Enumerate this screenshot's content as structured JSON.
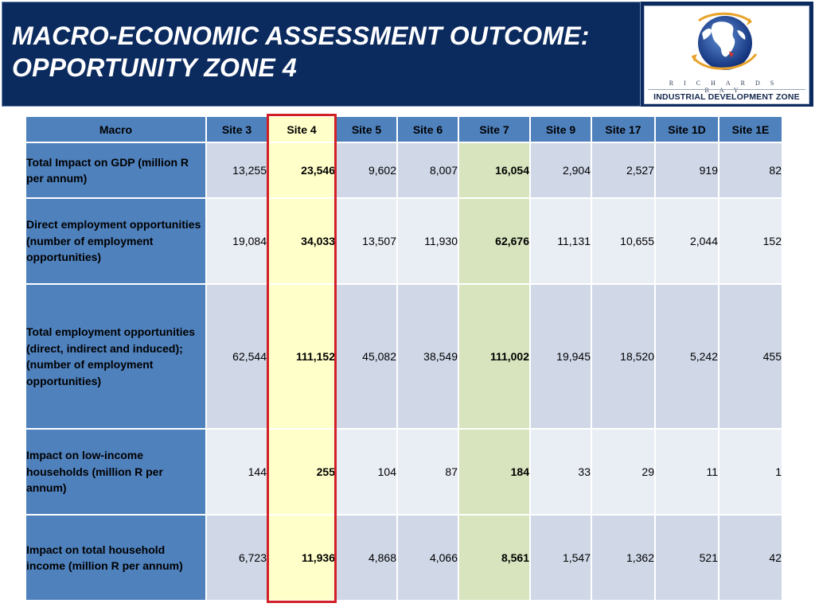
{
  "slide": {
    "title_line1": "MACRO-ECONOMIC ASSESSMENT OUTCOME:",
    "title_line2": "OPPORTUNITY ZONE 4",
    "logo": {
      "line1": "RICHARDS BAY",
      "line2": "INDUSTRIAL DEVELOPMENT ZONE"
    }
  },
  "table": {
    "headers": [
      "Macro",
      "Site 3",
      "Site 4",
      "Site 5",
      "Site 6",
      "Site 7",
      "Site 9",
      "Site 17",
      "Site 1D",
      "Site 1E"
    ],
    "rows": [
      {
        "label": "Total Impact on GDP (million R per annum)",
        "values": [
          "13,255",
          "23,546",
          "9,602",
          "8,007",
          "16,054",
          "2,904",
          "2,527",
          "919",
          "82"
        ]
      },
      {
        "label": "Direct employment opportunities (number of employment opportunities)",
        "values": [
          "19,084",
          "34,033",
          "13,507",
          "11,930",
          "62,676",
          "11,131",
          "10,655",
          "2,044",
          "152"
        ]
      },
      {
        "label": "Total employment opportunities (direct, indirect and induced); (number of employment opportunities)",
        "values": [
          "62,544",
          "111,152",
          "45,082",
          "38,549",
          "111,002",
          "19,945",
          "18,520",
          "5,242",
          "455"
        ]
      },
      {
        "label": "Impact on low-income households (million R per annum)",
        "values": [
          "144",
          "255",
          "104",
          "87",
          "184",
          "33",
          "29",
          "11",
          "1"
        ]
      },
      {
        "label": "Impact on total household income (million R per annum)",
        "values": [
          "6,723",
          "11,936",
          "4,868",
          "4,066",
          "8,561",
          "1,547",
          "1,362",
          "521",
          "42"
        ]
      }
    ]
  },
  "colors": {
    "title_band": "#0b2a5e",
    "header_blue": "#4f81bd",
    "site4_highlight": "#ffffc9",
    "site7_highlight": "#d7e4bd",
    "red_outline": "#d21f27"
  }
}
